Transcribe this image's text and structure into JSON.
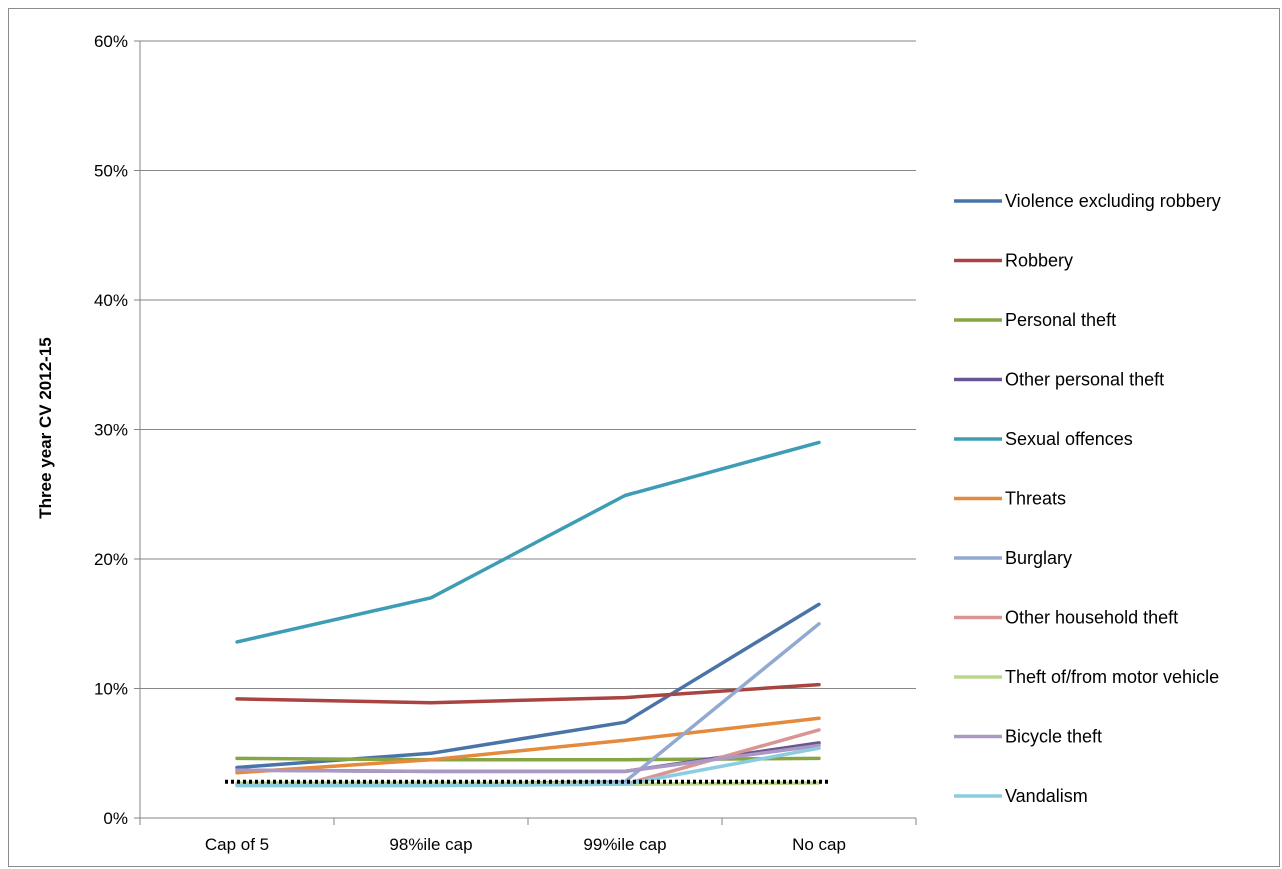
{
  "chart_data": {
    "type": "line",
    "title": "",
    "xlabel": "",
    "ylabel": "Three year CV 2012-15",
    "ylim": [
      0,
      0.6
    ],
    "ytick_step": 0.1,
    "ytick_labels": [
      "0%",
      "10%",
      "20%",
      "30%",
      "40%",
      "50%",
      "60%"
    ],
    "grid": true,
    "legend_position": "right",
    "categories": [
      "Cap of 5",
      "98%ile cap",
      "99%ile cap",
      "No cap"
    ],
    "series": [
      {
        "name": "Violence excluding robbery",
        "color": "#4a74a8",
        "values": [
          0.039,
          0.05,
          0.074,
          0.165
        ]
      },
      {
        "name": "Robbery",
        "color": "#a94442",
        "values": [
          0.092,
          0.089,
          0.093,
          0.103
        ]
      },
      {
        "name": "Personal theft",
        "color": "#86a544",
        "values": [
          0.046,
          0.045,
          0.045,
          0.046
        ]
      },
      {
        "name": "Other personal theft",
        "color": "#6a5590",
        "values": [
          0.037,
          0.036,
          0.036,
          0.058
        ]
      },
      {
        "name": "Sexual offences",
        "color": "#3e9db5",
        "values": [
          0.136,
          0.17,
          0.249,
          0.29
        ]
      },
      {
        "name": "Threats",
        "color": "#e58a3c",
        "values": [
          0.035,
          0.045,
          0.06,
          0.077
        ]
      },
      {
        "name": "Burglary",
        "color": "#92a9d2",
        "values": [
          0.026,
          0.026,
          0.028,
          0.15
        ]
      },
      {
        "name": "Other household theft",
        "color": "#d99594",
        "values": [
          0.026,
          0.026,
          0.026,
          0.068
        ]
      },
      {
        "name": "Theft of/from motor vehicle",
        "color": "#bcd68e",
        "values": [
          0.027,
          0.027,
          0.026,
          0.027
        ]
      },
      {
        "name": "Bicycle theft",
        "color": "#a999c4",
        "values": [
          0.037,
          0.036,
          0.036,
          0.056
        ]
      },
      {
        "name": "Vandalism",
        "color": "#8ccce0",
        "values": [
          0.025,
          0.025,
          0.026,
          0.054
        ]
      }
    ],
    "reference_line": {
      "value": 0.028,
      "style": "dotted",
      "color": "#000000"
    }
  }
}
